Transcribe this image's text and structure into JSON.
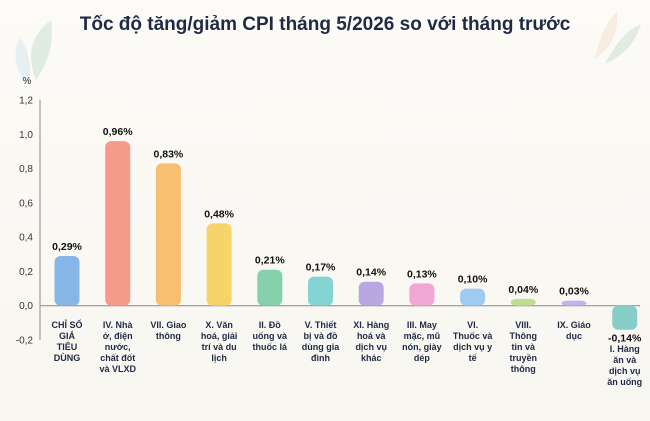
{
  "chart_data": {
    "type": "bar",
    "title": "Tốc độ tăng/giảm CPI tháng 5/2026 so với tháng trước",
    "ylabel": "%",
    "ylim": [
      -0.2,
      1.2
    ],
    "yticks": [
      "-0,2",
      "0,0",
      "0,2",
      "0,4",
      "0,6",
      "0,8",
      "1,0",
      "1,2"
    ],
    "yticks_values": [
      -0.2,
      0.0,
      0.2,
      0.4,
      0.6,
      0.8,
      1.0,
      1.2
    ],
    "grid": false,
    "categories": [
      "CHỈ SỐ GIÁ TIÊU DÙNG",
      "IV. Nhà ở, điện nước, chất đốt và VLXD",
      "VII. Giao thông",
      "X. Văn hoá, giải trí và du lịch",
      "II. Đồ uống và thuốc lá",
      "V. Thiết bị và đồ dùng gia đình",
      "XI. Hàng hoá và dịch vụ khác",
      "III. May mặc, mũ nón, giày dép",
      "VI. Thuốc và dịch vụ y tế",
      "VIII. Thông tin và truyền thông",
      "IX. Giáo dục",
      "I. Hàng ăn và dịch vụ ăn uống"
    ],
    "category_lines": [
      [
        "CHỈ SỐ",
        "GIÁ",
        "TIÊU",
        "DÙNG"
      ],
      [
        "IV. Nhà",
        "ở, điện",
        "nước,",
        "chất đốt",
        "và VLXD"
      ],
      [
        "VII. Giao",
        "thông"
      ],
      [
        "X. Văn",
        "hoá, giải",
        "trí và du",
        "lịch"
      ],
      [
        "II. Đồ",
        "uống và",
        "thuốc lá"
      ],
      [
        "V. Thiết",
        "bị và đồ",
        "dùng gia",
        "đình"
      ],
      [
        "XI. Hàng",
        "hoá và",
        "dịch vụ",
        "khác"
      ],
      [
        "III. May",
        "mặc, mũ",
        "nón, giày",
        "dép"
      ],
      [
        "VI.",
        "Thuốc và",
        "dịch vụ y",
        "tế"
      ],
      [
        "VIII.",
        "Thông",
        "tin và",
        "truyền",
        "thông"
      ],
      [
        "IX. Giáo",
        "dục"
      ],
      [
        "I. Hàng",
        "ăn và",
        "dịch vụ",
        "ăn uống"
      ]
    ],
    "values": [
      0.29,
      0.96,
      0.83,
      0.48,
      0.21,
      0.17,
      0.14,
      0.13,
      0.1,
      0.04,
      0.03,
      -0.14
    ],
    "value_labels": [
      "0,29%",
      "0,96%",
      "0,83%",
      "0,48%",
      "0,21%",
      "0,17%",
      "0,14%",
      "0,13%",
      "0,10%",
      "0,04%",
      "0,03%",
      "-0,14%"
    ],
    "colors": [
      "#86b6e6",
      "#f89a8a",
      "#f7bf6f",
      "#f6d46a",
      "#86d1ac",
      "#84d4d3",
      "#b9a7e4",
      "#f1a6d6",
      "#9fcaf1",
      "#c1dc94",
      "#c2b4e8",
      "#86cec7"
    ]
  }
}
